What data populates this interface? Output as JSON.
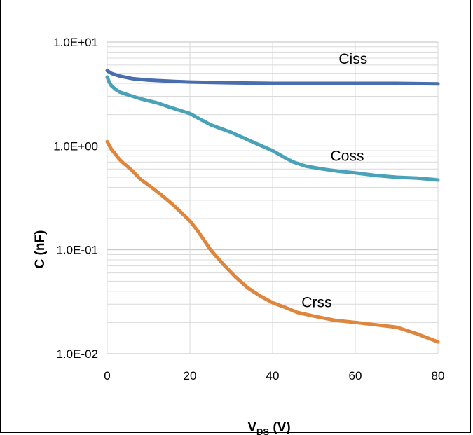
{
  "chart_data": {
    "type": "line",
    "xlabel_main": "V",
    "xlabel_sub": "DS",
    "xlabel_unit": " (V)",
    "ylabel": "C (nF)",
    "xlim": [
      0,
      80
    ],
    "ylim": [
      0.01,
      10
    ],
    "y_scale": "log",
    "grid": true,
    "x_ticks": [
      0,
      20,
      40,
      60,
      80
    ],
    "x_tick_labels": [
      "0",
      "20",
      "40",
      "60",
      "80"
    ],
    "y_ticks": [
      10,
      1,
      0.1,
      0.01
    ],
    "y_tick_labels": [
      "1.0E+01",
      "1.0E+00",
      "1.0E-01",
      "1.0E-02"
    ],
    "series": [
      {
        "name": "Ciss",
        "color": "#4a6ead",
        "label_at": [
          56,
          6.2
        ],
        "points": [
          [
            0,
            5.3
          ],
          [
            1,
            5.0
          ],
          [
            3,
            4.7
          ],
          [
            6,
            4.45
          ],
          [
            10,
            4.3
          ],
          [
            15,
            4.2
          ],
          [
            20,
            4.12
          ],
          [
            30,
            4.05
          ],
          [
            40,
            4.0
          ],
          [
            50,
            4.0
          ],
          [
            60,
            4.0
          ],
          [
            70,
            4.0
          ],
          [
            80,
            3.95
          ]
        ]
      },
      {
        "name": "Coss",
        "color": "#4aa2b8",
        "label_at": [
          54,
          0.72
        ],
        "points": [
          [
            0,
            4.6
          ],
          [
            0.5,
            4.1
          ],
          [
            1,
            3.8
          ],
          [
            2,
            3.5
          ],
          [
            3,
            3.3
          ],
          [
            5,
            3.1
          ],
          [
            8,
            2.85
          ],
          [
            12,
            2.6
          ],
          [
            16,
            2.3
          ],
          [
            20,
            2.05
          ],
          [
            22,
            1.85
          ],
          [
            25,
            1.6
          ],
          [
            30,
            1.35
          ],
          [
            35,
            1.1
          ],
          [
            40,
            0.9
          ],
          [
            43,
            0.77
          ],
          [
            45,
            0.7
          ],
          [
            48,
            0.64
          ],
          [
            52,
            0.6
          ],
          [
            56,
            0.57
          ],
          [
            60,
            0.55
          ],
          [
            65,
            0.52
          ],
          [
            70,
            0.5
          ],
          [
            75,
            0.49
          ],
          [
            80,
            0.47
          ]
        ]
      },
      {
        "name": "Crss",
        "color": "#e0863c",
        "label_at": [
          47,
          0.028
        ],
        "points": [
          [
            0,
            1.1
          ],
          [
            1,
            0.93
          ],
          [
            2,
            0.83
          ],
          [
            3,
            0.74
          ],
          [
            4,
            0.68
          ],
          [
            5,
            0.63
          ],
          [
            6,
            0.58
          ],
          [
            8,
            0.48
          ],
          [
            10,
            0.42
          ],
          [
            13,
            0.34
          ],
          [
            16,
            0.27
          ],
          [
            20,
            0.19
          ],
          [
            22,
            0.15
          ],
          [
            25,
            0.1
          ],
          [
            28,
            0.073
          ],
          [
            31,
            0.055
          ],
          [
            34,
            0.043
          ],
          [
            37,
            0.036
          ],
          [
            40,
            0.031
          ],
          [
            43,
            0.028
          ],
          [
            46,
            0.025
          ],
          [
            50,
            0.023
          ],
          [
            55,
            0.021
          ],
          [
            60,
            0.02
          ],
          [
            65,
            0.019
          ],
          [
            70,
            0.018
          ],
          [
            75,
            0.0155
          ],
          [
            80,
            0.013
          ]
        ]
      }
    ]
  }
}
